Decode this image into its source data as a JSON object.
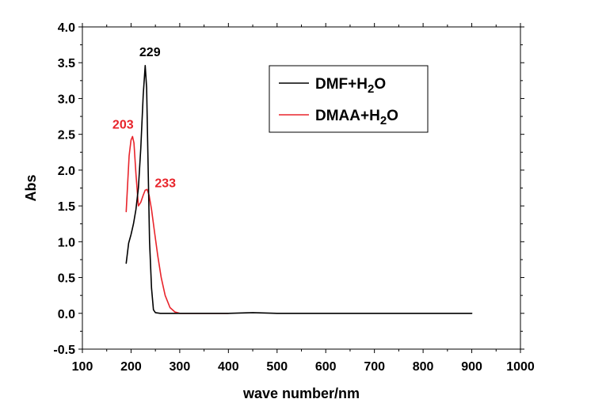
{
  "chart_data": {
    "type": "line",
    "xlabel": "wave number/nm",
    "ylabel": "Abs",
    "xlim": [
      100,
      1000
    ],
    "ylim": [
      -0.5,
      4.0
    ],
    "x_ticks": [
      100,
      200,
      300,
      400,
      500,
      600,
      700,
      800,
      900,
      1000
    ],
    "x_tick_labels": [
      "100",
      "200",
      "300",
      "400",
      "500",
      "600",
      "700",
      "800",
      "900",
      "1000"
    ],
    "y_ticks": [
      -0.5,
      0.0,
      0.5,
      1.0,
      1.5,
      2.0,
      2.5,
      3.0,
      3.5,
      4.0
    ],
    "y_tick_labels": [
      "-0.5",
      "0.0",
      "0.5",
      "1.0",
      "1.5",
      "2.0",
      "2.5",
      "3.0",
      "3.5",
      "4.0"
    ],
    "grid": false,
    "legend_position": "top-right",
    "series": [
      {
        "name": "DMF+H2O",
        "legend_main": "DMF+H",
        "legend_sub": "2",
        "legend_tail": "O",
        "color": "#000000",
        "x": [
          190,
          195,
          200,
          205,
          210,
          215,
          220,
          225,
          229,
          232,
          235,
          238,
          242,
          246,
          250,
          260,
          280,
          300,
          400,
          450,
          500,
          600,
          700,
          800,
          900
        ],
        "y": [
          0.7,
          0.98,
          1.1,
          1.25,
          1.45,
          1.75,
          2.3,
          3.05,
          3.46,
          3.15,
          2.1,
          1.0,
          0.35,
          0.05,
          0.01,
          0.0,
          0.0,
          0.0,
          0.0,
          0.01,
          0.0,
          0.0,
          0.0,
          0.0,
          0.0
        ]
      },
      {
        "name": "DMAA+H2O",
        "legend_main": "DMAA+H",
        "legend_sub": "2",
        "legend_tail": "O",
        "color": "#e8242b",
        "x": [
          190,
          193,
          196,
          200,
          203,
          206,
          210,
          215,
          220,
          225,
          229,
          233,
          237,
          242,
          248,
          255,
          262,
          270,
          280,
          290,
          300,
          320,
          350,
          400
        ],
        "y": [
          1.42,
          1.8,
          2.2,
          2.42,
          2.47,
          2.38,
          1.95,
          1.5,
          1.55,
          1.65,
          1.72,
          1.73,
          1.65,
          1.45,
          1.15,
          0.8,
          0.5,
          0.25,
          0.08,
          0.02,
          0.0,
          0.0,
          0.0,
          0.0
        ]
      }
    ],
    "annotations": [
      {
        "text": "229",
        "x": 229,
        "y": 3.46,
        "color": "#000000"
      },
      {
        "text": "203",
        "x": 203,
        "y": 2.47,
        "color": "#e8242b"
      },
      {
        "text": "233",
        "x": 233,
        "y": 1.73,
        "color": "#e8242b"
      }
    ]
  }
}
